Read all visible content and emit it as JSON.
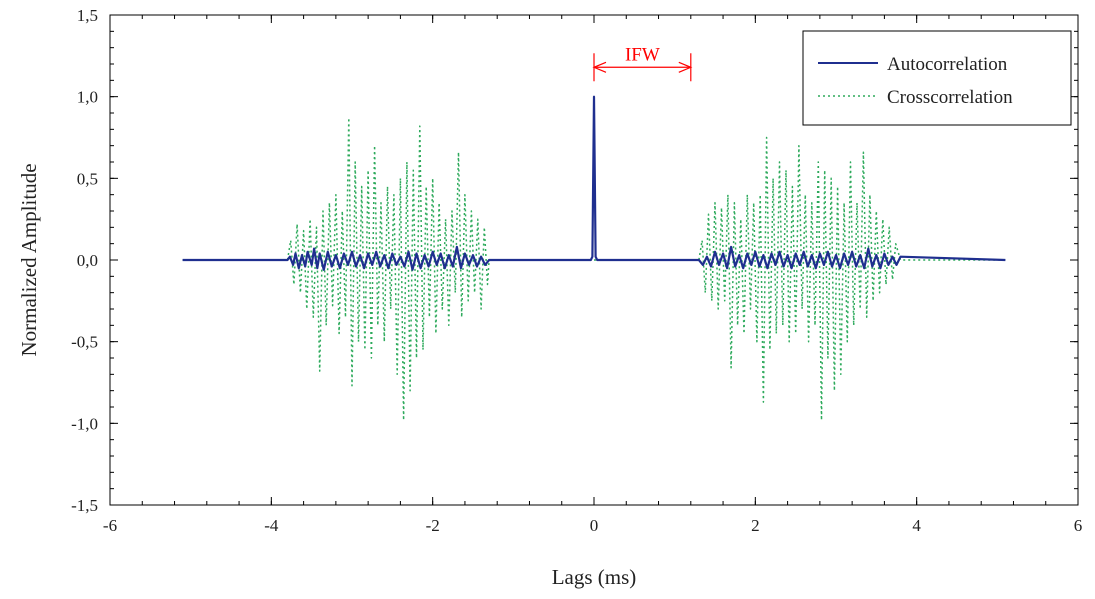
{
  "chart_data": {
    "type": "line",
    "title": "",
    "xlabel": "Lags (ms)",
    "ylabel": "Normalized Amplitude",
    "xlim": [
      -6,
      6
    ],
    "ylim": [
      -1.5,
      1.5
    ],
    "xticks": [
      -6,
      -4,
      -2,
      0,
      2,
      4,
      6
    ],
    "xtick_labels": [
      "-6",
      "-4",
      "-2",
      "0",
      "2",
      "4",
      "6"
    ],
    "yticks": [
      -1.5,
      -1.0,
      -0.5,
      0.0,
      0.5,
      1.0,
      1.5
    ],
    "ytick_labels": [
      "-1,5",
      "-1,0",
      "-0,5",
      "0,0",
      "0,5",
      "1,0",
      "1,5"
    ],
    "minor_xtick_step": 0.4,
    "minor_ytick_step": 0.1,
    "grid": false,
    "legend_position": "top-right",
    "series": [
      {
        "name": "Autocorrelation",
        "color": "#1f2f8f",
        "style": "solid",
        "x": [
          -5.1,
          -3.8,
          -3.77,
          -3.73,
          -3.7,
          -3.66,
          -3.62,
          -3.58,
          -3.55,
          -3.5,
          -3.47,
          -3.43,
          -3.4,
          -3.35,
          -3.3,
          -3.25,
          -3.2,
          -3.15,
          -3.1,
          -3.05,
          -3.0,
          -2.95,
          -2.9,
          -2.85,
          -2.8,
          -2.75,
          -2.7,
          -2.65,
          -2.6,
          -2.55,
          -2.5,
          -2.45,
          -2.4,
          -2.35,
          -2.3,
          -2.25,
          -2.2,
          -2.15,
          -2.1,
          -2.05,
          -2.0,
          -1.95,
          -1.9,
          -1.85,
          -1.8,
          -1.75,
          -1.7,
          -1.65,
          -1.6,
          -1.55,
          -1.5,
          -1.45,
          -1.4,
          -1.35,
          -1.3,
          -0.04,
          -0.02,
          0.0,
          0.02,
          0.04,
          1.3,
          1.35,
          1.4,
          1.45,
          1.5,
          1.55,
          1.6,
          1.65,
          1.7,
          1.75,
          1.8,
          1.85,
          1.9,
          1.95,
          2.0,
          2.05,
          2.1,
          2.15,
          2.2,
          2.25,
          2.3,
          2.35,
          2.4,
          2.45,
          2.5,
          2.55,
          2.6,
          2.65,
          2.7,
          2.75,
          2.8,
          2.85,
          2.9,
          2.95,
          3.0,
          3.05,
          3.1,
          3.15,
          3.2,
          3.25,
          3.3,
          3.35,
          3.4,
          3.45,
          3.5,
          3.55,
          3.6,
          3.65,
          3.7,
          3.75,
          3.8,
          5.1
        ],
        "y": [
          0.0,
          0.0,
          0.02,
          -0.03,
          0.04,
          -0.05,
          0.03,
          -0.04,
          0.05,
          -0.03,
          0.07,
          -0.05,
          0.04,
          -0.06,
          0.05,
          -0.04,
          0.03,
          -0.05,
          0.04,
          -0.03,
          0.05,
          -0.04,
          0.03,
          -0.05,
          0.04,
          -0.03,
          0.05,
          -0.04,
          0.03,
          -0.05,
          0.04,
          -0.03,
          0.02,
          -0.04,
          0.05,
          -0.06,
          0.04,
          -0.05,
          0.03,
          -0.04,
          0.05,
          -0.03,
          0.04,
          -0.05,
          0.03,
          -0.04,
          0.08,
          -0.05,
          0.04,
          -0.03,
          0.03,
          -0.04,
          0.02,
          -0.03,
          0.0,
          0.0,
          0.02,
          1.0,
          0.02,
          0.0,
          0.0,
          -0.03,
          0.02,
          -0.04,
          0.05,
          -0.03,
          0.04,
          -0.05,
          0.08,
          -0.04,
          0.03,
          -0.05,
          0.04,
          -0.03,
          0.05,
          -0.04,
          0.03,
          -0.05,
          0.04,
          -0.03,
          0.05,
          -0.04,
          0.03,
          -0.05,
          0.04,
          -0.03,
          0.05,
          -0.04,
          0.03,
          -0.05,
          0.04,
          -0.03,
          0.05,
          -0.04,
          0.03,
          -0.05,
          0.04,
          -0.03,
          0.05,
          -0.04,
          0.03,
          -0.05,
          0.07,
          -0.04,
          0.03,
          -0.05,
          0.04,
          -0.03,
          0.02,
          -0.03,
          0.02,
          0.0
        ]
      },
      {
        "name": "Crosscorrelation",
        "color": "#2eaa5c",
        "style": "dotted",
        "x": [
          -5.1,
          -3.8,
          -3.76,
          -3.72,
          -3.68,
          -3.64,
          -3.6,
          -3.56,
          -3.52,
          -3.48,
          -3.44,
          -3.4,
          -3.36,
          -3.32,
          -3.28,
          -3.24,
          -3.2,
          -3.16,
          -3.12,
          -3.08,
          -3.04,
          -3.0,
          -2.96,
          -2.92,
          -2.88,
          -2.84,
          -2.8,
          -2.76,
          -2.72,
          -2.68,
          -2.64,
          -2.6,
          -2.56,
          -2.52,
          -2.48,
          -2.44,
          -2.4,
          -2.36,
          -2.32,
          -2.28,
          -2.24,
          -2.2,
          -2.16,
          -2.12,
          -2.08,
          -2.04,
          -2.0,
          -1.96,
          -1.92,
          -1.88,
          -1.84,
          -1.8,
          -1.76,
          -1.72,
          -1.68,
          -1.64,
          -1.6,
          -1.56,
          -1.52,
          -1.48,
          -1.44,
          -1.4,
          -1.36,
          -1.32,
          -1.3,
          1.3,
          1.34,
          1.38,
          1.42,
          1.46,
          1.5,
          1.54,
          1.58,
          1.62,
          1.66,
          1.7,
          1.74,
          1.78,
          1.82,
          1.86,
          1.9,
          1.94,
          1.98,
          2.02,
          2.06,
          2.1,
          2.14,
          2.18,
          2.22,
          2.26,
          2.3,
          2.34,
          2.38,
          2.42,
          2.46,
          2.5,
          2.54,
          2.58,
          2.62,
          2.66,
          2.7,
          2.74,
          2.78,
          2.82,
          2.86,
          2.9,
          2.94,
          2.98,
          3.02,
          3.06,
          3.1,
          3.14,
          3.18,
          3.22,
          3.26,
          3.3,
          3.34,
          3.38,
          3.42,
          3.46,
          3.5,
          3.54,
          3.58,
          3.62,
          3.66,
          3.7,
          3.74,
          3.8,
          5.1
        ],
        "y": [
          0.0,
          0.0,
          0.12,
          -0.15,
          0.22,
          -0.2,
          0.18,
          -0.3,
          0.25,
          -0.35,
          0.2,
          -0.68,
          0.3,
          -0.4,
          0.35,
          -0.28,
          0.4,
          -0.45,
          0.3,
          -0.35,
          0.87,
          -0.77,
          0.6,
          -0.5,
          0.45,
          -0.55,
          0.55,
          -0.6,
          0.7,
          -0.4,
          0.35,
          -0.5,
          0.45,
          -0.3,
          0.4,
          -0.7,
          0.5,
          -0.98,
          0.6,
          -0.8,
          0.55,
          -0.6,
          0.82,
          -0.55,
          0.45,
          -0.35,
          0.5,
          -0.45,
          0.35,
          -0.3,
          0.25,
          -0.4,
          0.3,
          -0.2,
          0.66,
          -0.35,
          0.4,
          -0.25,
          0.3,
          -0.2,
          0.25,
          -0.3,
          0.2,
          -0.15,
          0.0,
          0.0,
          0.12,
          -0.2,
          0.28,
          -0.25,
          0.35,
          -0.3,
          0.32,
          -0.25,
          0.4,
          -0.66,
          0.35,
          -0.4,
          0.25,
          -0.45,
          0.4,
          -0.3,
          0.35,
          -0.5,
          0.4,
          -0.87,
          0.75,
          -0.55,
          0.5,
          -0.45,
          0.6,
          -0.4,
          0.55,
          -0.5,
          0.45,
          -0.45,
          0.7,
          -0.3,
          0.4,
          -0.5,
          0.35,
          -0.4,
          0.6,
          -0.98,
          0.55,
          -0.6,
          0.5,
          -0.8,
          0.45,
          -0.7,
          0.35,
          -0.5,
          0.6,
          -0.4,
          0.35,
          -0.3,
          0.66,
          -0.35,
          0.4,
          -0.25,
          0.3,
          -0.2,
          0.25,
          -0.15,
          0.2,
          -0.12,
          0.1,
          0.0,
          0.0
        ]
      }
    ],
    "annotations": [
      {
        "text": "IFW",
        "x_start": 0.0,
        "x_end": 1.2,
        "y": 1.18,
        "color": "#ff0000"
      }
    ]
  }
}
